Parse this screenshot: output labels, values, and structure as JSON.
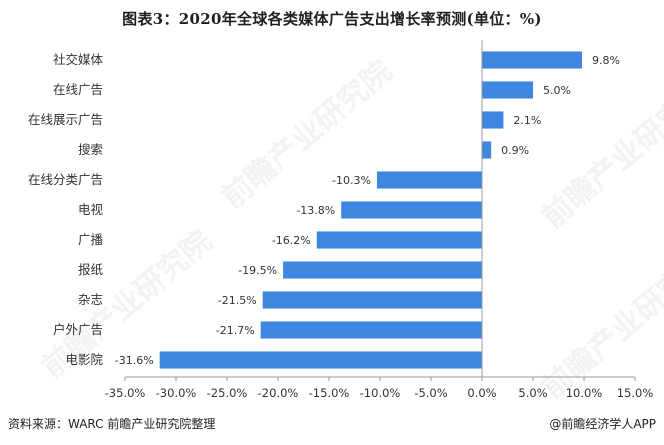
{
  "title": "图表3：2020年全球各类媒体广告支出增长率预测(单位：%)",
  "source": "资料来源：WARC 前瞻产业研究院整理",
  "brand": "@前瞻经济学人APP",
  "watermark_text": "前瞻产业研究院",
  "colors": {
    "bar": "#3f86e0",
    "axis": "#9a9a9a",
    "text": "#333333"
  },
  "chart_data": {
    "type": "bar",
    "orientation": "horizontal",
    "categories": [
      "社交媒体",
      "在线广告",
      "在线展示广告",
      "搜索",
      "在线分类广告",
      "电视",
      "广播",
      "报纸",
      "杂志",
      "户外广告",
      "电影院"
    ],
    "values": [
      9.8,
      5.0,
      2.1,
      0.9,
      -10.3,
      -13.8,
      -16.2,
      -19.5,
      -21.5,
      -21.7,
      -31.6
    ],
    "value_labels": [
      "9.8%",
      "5.0%",
      "2.1%",
      "0.9%",
      "-10.3%",
      "-13.8%",
      "-16.2%",
      "-19.5%",
      "-21.5%",
      "-21.7%",
      "-31.6%"
    ],
    "xlim": [
      -35,
      15
    ],
    "xticks": [
      -35,
      -30,
      -25,
      -20,
      -15,
      -10,
      -5,
      0,
      5,
      10,
      15
    ],
    "xtick_labels": [
      "-35.0%",
      "-30.0%",
      "-25.0%",
      "-20.0%",
      "-15.0%",
      "-10.0%",
      "-5.0%",
      "0.0%",
      "5.0%",
      "10.0%",
      "15.0%"
    ],
    "grid": false,
    "legend": "none"
  }
}
